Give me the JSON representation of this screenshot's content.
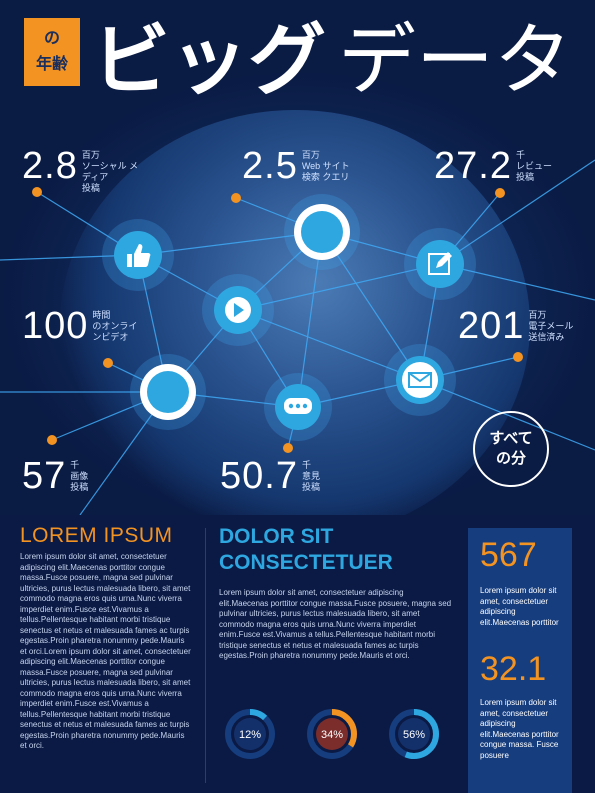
{
  "header": {
    "tag_lines": [
      "の",
      "年齢"
    ],
    "title_bold": "ビッグ",
    "title_light": "データ"
  },
  "stats": [
    {
      "num": "2.8",
      "unit": [
        "百万",
        "ソーシャル メ",
        "ディア",
        "投稿"
      ]
    },
    {
      "num": "2.5",
      "unit": [
        "百万",
        "Web サイト",
        "検索 クエリ"
      ]
    },
    {
      "num": "27.2",
      "unit": [
        "千",
        "レビュー",
        "投稿"
      ]
    },
    {
      "num": "100",
      "unit": [
        "時間",
        "のオンライ",
        "ンビデオ"
      ]
    },
    {
      "num": "201",
      "unit": [
        "百万",
        "電子メール",
        "送信済み"
      ]
    },
    {
      "num": "57",
      "unit": [
        "千",
        "画像",
        "投稿"
      ]
    },
    {
      "num": "50.7",
      "unit": [
        "千",
        "意見",
        "投稿"
      ]
    }
  ],
  "bubble": {
    "line1": "すべて",
    "line2": "の分"
  },
  "icons": [
    "thumbs-up-icon",
    "circle-node-icon",
    "edit-icon",
    "play-icon",
    "circle-node-icon",
    "chat-icon",
    "mail-icon"
  ],
  "colors": {
    "accent_orange": "#f39322",
    "accent_blue": "#2ea7e0",
    "navy": "#0a1a44",
    "panel": "#163d7e"
  },
  "left": {
    "heading": "LOREM IPSUM",
    "text": "Lorem ipsum dolor sit amet, consectetuer adipiscing elit.Maecenas porttitor congue massa.Fusce posuere, magna sed pulvinar ultricies, purus lectus malesuada libero, sit amet commodo magna eros quis urna.Nunc viverra imperdiet enim.Fusce est.Vivamus a tellus.Pellentesque habitant morbi tristique senectus et netus et malesuada fames ac turpis egestas.Proin pharetra nonummy pede.Mauris et orci.Lorem ipsum dolor sit amet, consectetuer adipiscing elit.Maecenas porttitor congue massa.Fusce posuere, magna sed pulvinar ultricies, purus lectus malesuada libero, sit amet commodo magna eros quis urna.Nunc viverra imperdiet enim.Fusce est.Vivamus a tellus.Pellentesque habitant morbi tristique senectus et netus et malesuada fames ac turpis egestas.Proin pharetra nonummy pede.Mauris et orci."
  },
  "middle": {
    "heading_line1": "DOLOR SIT",
    "heading_line2": "CONSECTETUER",
    "text": "Lorem ipsum dolor sit amet, consectetuer adipiscing elit.Maecenas porttitor congue massa.Fusce posuere, magna sed pulvinar ultricies, purus lectus malesuada libero, sit amet commodo magna eros quis urna.Nunc viverra imperdiet enim.Fusce est.Vivamus a tellus.Pellentesque habitant morbi tristique senectus et netus et malesuada fames ac turpis egestas.Proin pharetra nonummy pede.Mauris et orci."
  },
  "donuts": [
    {
      "label": "12%",
      "value": 12,
      "color": "#2ea7e0"
    },
    {
      "label": "34%",
      "value": 34,
      "color": "#f39322"
    },
    {
      "label": "56%",
      "value": 56,
      "color": "#2ea7e0"
    }
  ],
  "panel": {
    "num1": "567",
    "text1": "Lorem ipsum dolor sit amet, consectetuer adipiscing elit.Maecenas porttitor",
    "num2": "32.1",
    "text2": "Lorem ipsum dolor sit amet, consectetuer adipiscing elit.Maecenas porttitor congue massa. Fusce posuere"
  }
}
